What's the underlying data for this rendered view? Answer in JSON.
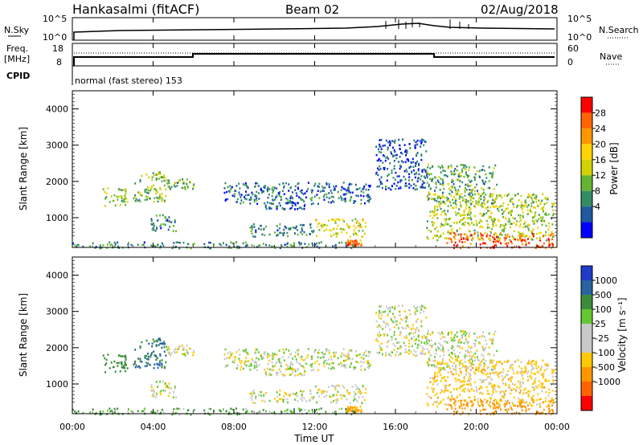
{
  "header": {
    "station": "Hankasalmi (fitACF)",
    "beam": "Beam 02",
    "date": "02/Aug/2018"
  },
  "noise_panel": {
    "left_label": "N.Sky",
    "right_label": "N.Search",
    "left_ticks": [
      "10^5",
      "10^0"
    ],
    "right_ticks": [
      "10^5",
      "10^0"
    ]
  },
  "freq_panel": {
    "left_label_1": "Freq.",
    "left_label_2": "[MHz]",
    "right_label": "Nave",
    "left_ticks": [
      "18",
      "8"
    ],
    "right_ticks": [
      "60",
      "0"
    ]
  },
  "cpid": {
    "label": "CPID",
    "text": "normal (fast stereo) 153"
  },
  "power_panel": {
    "ylabel": "Slant Range [km]",
    "colorbar_label": "Power [dB]",
    "colorbar_ticks": [
      "28",
      "24",
      "20",
      "16",
      "12",
      "8",
      "4"
    ],
    "colorbar_colors": [
      "#ff0000",
      "#ff6400",
      "#ff9600",
      "#ffd200",
      "#d2d200",
      "#64b432",
      "#328c64",
      "#1e5aa0",
      "#0000ff"
    ]
  },
  "velocity_panel": {
    "ylabel": "Slant Range [km]",
    "colorbar_label": "Velocity [m s⁻¹]",
    "colorbar_ticks": [
      "1000",
      "500",
      "100",
      "25",
      "-25",
      "-100",
      "-500",
      "-1000"
    ],
    "colorbar_colors": [
      "#1e3cc8",
      "#2864a0",
      "#3c8c3c",
      "#64c832",
      "#c8c8c8",
      "#c8c8c8",
      "#ffc800",
      "#ff9600",
      "#ff6400",
      "#ff0000"
    ]
  },
  "y_ticks": [
    "4000",
    "3000",
    "2000",
    "1000"
  ],
  "x_ticks": [
    "00:00",
    "04:00",
    "08:00",
    "12:00",
    "16:00",
    "20:00",
    "00:00"
  ],
  "xlabel": "Time UT",
  "chart_data": {
    "type": "heatmap",
    "title": "Hankasalmi (fitACF) Beam 02 02/Aug/2018",
    "xlabel": "Time UT",
    "ylabel": "Slant Range [km]",
    "xlim": [
      0,
      24
    ],
    "ylim": [
      180,
      4500
    ],
    "power_scale_db": [
      0,
      30
    ],
    "velocity_scale_ms": [
      -1000,
      1000
    ],
    "patches": [
      {
        "t": [
          1.5,
          2.7
        ],
        "r": [
          1350,
          1850
        ],
        "power": 14,
        "velocity": 200
      },
      {
        "t": [
          3.0,
          4.6
        ],
        "r": [
          1450,
          2300
        ],
        "power": 12,
        "velocity": 300
      },
      {
        "t": [
          4.6,
          6.0
        ],
        "r": [
          1800,
          2100
        ],
        "power": 10,
        "velocity": 0
      },
      {
        "t": [
          3.8,
          5.2
        ],
        "r": [
          650,
          1100
        ],
        "power": 8,
        "velocity": 0
      },
      {
        "t": [
          7.5,
          14.8
        ],
        "r": [
          1400,
          2000
        ],
        "power": 6,
        "velocity": 0
      },
      {
        "t": [
          9.5,
          11.5
        ],
        "r": [
          1250,
          1450
        ],
        "power": 5,
        "velocity": 0
      },
      {
        "t": [
          8.7,
          12.0
        ],
        "r": [
          500,
          850
        ],
        "power": 8,
        "velocity": 0
      },
      {
        "t": [
          12.0,
          14.5
        ],
        "r": [
          500,
          1000
        ],
        "power": 16,
        "velocity": 0
      },
      {
        "t": [
          13.5,
          14.3
        ],
        "r": [
          250,
          400
        ],
        "power": 24,
        "velocity": -100
      },
      {
        "t": [
          15.0,
          17.5
        ],
        "r": [
          1800,
          3200
        ],
        "power": 5,
        "velocity": 0
      },
      {
        "t": [
          17.5,
          21.0
        ],
        "r": [
          1400,
          2500
        ],
        "power": 10,
        "velocity": 0
      },
      {
        "t": [
          17.5,
          23.8
        ],
        "r": [
          400,
          1700
        ],
        "power": 14,
        "velocity": -50
      },
      {
        "t": [
          18.5,
          23.8
        ],
        "r": [
          180,
          600
        ],
        "power": 26,
        "velocity": -400
      },
      {
        "t": [
          0.0,
          14.0
        ],
        "r": [
          180,
          350
        ],
        "power": 8,
        "velocity": 60
      }
    ]
  }
}
